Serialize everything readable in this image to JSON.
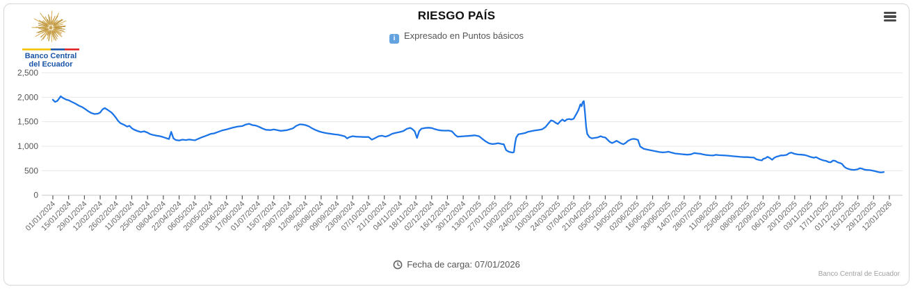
{
  "header": {
    "title": "RIESGO PAÍS",
    "subtitle": "Expresado en Puntos básicos",
    "info_icon_glyph": "i",
    "logo_line1": "Banco Central",
    "logo_line2": "del Ecuador"
  },
  "footer": {
    "load_date_text": "Fecha de carga: 07/01/2026"
  },
  "credits": {
    "text": "Banco Central de Ecuador"
  },
  "colors": {
    "line": "#1b74e8",
    "grid": "#e7e7e7",
    "axis": "#c9c9c9",
    "tick": "#555555",
    "x_label": "#666666",
    "y_label": "#555555",
    "title": "#111111",
    "subtitle": "#555555",
    "info_icon_bg": "#63a3e0",
    "menu_icon": "#4a4a4a",
    "logo_text": "#1a55a8",
    "logo_gold": "#c9a24b",
    "flag_yellow": "#f4c400",
    "flag_blue": "#1a55a8",
    "flag_red": "#e02222"
  },
  "chart_data": {
    "type": "line",
    "title": "RIESGO PAÍS",
    "subtitle": "Expresado en Puntos básicos",
    "ylabel": "Puntos básicos",
    "ylim": [
      0,
      2500
    ],
    "y_tick_labels": [
      "0",
      "500",
      "1,000",
      "1,500",
      "2,000",
      "2,500"
    ],
    "grid": "horizontal",
    "legend": "none",
    "x_unit": "days since 01/01/2024, biweekly ticks",
    "x_range_days": [
      0,
      742
    ],
    "x_tick_interval_days": 14,
    "x_tick_labels": [
      "01/01/2024",
      "15/01/2024",
      "29/01/2024",
      "12/02/2024",
      "26/02/2024",
      "11/03/2024",
      "25/03/2024",
      "08/04/2024",
      "22/04/2024",
      "06/05/2024",
      "20/05/2024",
      "03/06/2024",
      "17/06/2024",
      "01/07/2024",
      "15/07/2024",
      "29/07/2024",
      "12/08/2024",
      "26/08/2024",
      "09/09/2024",
      "23/09/2024",
      "07/10/2024",
      "21/10/2024",
      "04/11/2024",
      "18/11/2024",
      "02/12/2024",
      "16/12/2024",
      "30/12/2024",
      "13/01/2025",
      "27/01/2025",
      "10/02/2025",
      "24/02/2025",
      "10/03/2025",
      "24/03/2025",
      "07/04/2025",
      "21/04/2025",
      "05/05/2025",
      "19/05/2025",
      "02/06/2025",
      "16/06/2025",
      "30/06/2025",
      "14/07/2025",
      "28/07/2025",
      "11/08/2025",
      "25/08/2025",
      "08/09/2025",
      "22/09/2025",
      "06/10/2025",
      "20/10/2025",
      "03/11/2025",
      "17/11/2025",
      "01/12/2025",
      "15/12/2025",
      "29/12/2025",
      "12/01/2026"
    ],
    "series": [
      {
        "name": "Riesgo País",
        "points": [
          [
            0,
            1950
          ],
          [
            2,
            1905
          ],
          [
            4,
            1925
          ],
          [
            7,
            2020
          ],
          [
            9,
            1985
          ],
          [
            12,
            1950
          ],
          [
            14,
            1940
          ],
          [
            17,
            1905
          ],
          [
            20,
            1870
          ],
          [
            23,
            1830
          ],
          [
            26,
            1800
          ],
          [
            28,
            1770
          ],
          [
            31,
            1720
          ],
          [
            34,
            1680
          ],
          [
            37,
            1658
          ],
          [
            40,
            1665
          ],
          [
            42,
            1690
          ],
          [
            44,
            1750
          ],
          [
            46,
            1780
          ],
          [
            49,
            1738
          ],
          [
            52,
            1690
          ],
          [
            54,
            1640
          ],
          [
            56,
            1580
          ],
          [
            58,
            1515
          ],
          [
            60,
            1470
          ],
          [
            63,
            1440
          ],
          [
            66,
            1400
          ],
          [
            68,
            1418
          ],
          [
            70,
            1368
          ],
          [
            72,
            1340
          ],
          [
            75,
            1312
          ],
          [
            78,
            1290
          ],
          [
            81,
            1305
          ],
          [
            84,
            1278
          ],
          [
            86,
            1250
          ],
          [
            89,
            1230
          ],
          [
            92,
            1215
          ],
          [
            95,
            1205
          ],
          [
            98,
            1185
          ],
          [
            101,
            1162
          ],
          [
            103,
            1148
          ],
          [
            105,
            1295
          ],
          [
            107,
            1160
          ],
          [
            109,
            1128
          ],
          [
            112,
            1118
          ],
          [
            115,
            1135
          ],
          [
            118,
            1126
          ],
          [
            121,
            1138
          ],
          [
            124,
            1128
          ],
          [
            126,
            1122
          ],
          [
            129,
            1152
          ],
          [
            132,
            1182
          ],
          [
            136,
            1215
          ],
          [
            140,
            1252
          ],
          [
            143,
            1262
          ],
          [
            146,
            1288
          ],
          [
            150,
            1322
          ],
          [
            154,
            1342
          ],
          [
            157,
            1362
          ],
          [
            160,
            1382
          ],
          [
            164,
            1402
          ],
          [
            168,
            1412
          ],
          [
            171,
            1442
          ],
          [
            174,
            1458
          ],
          [
            177,
            1432
          ],
          [
            180,
            1422
          ],
          [
            183,
            1395
          ],
          [
            186,
            1362
          ],
          [
            189,
            1335
          ],
          [
            193,
            1330
          ],
          [
            196,
            1342
          ],
          [
            199,
            1330
          ],
          [
            202,
            1315
          ],
          [
            205,
            1322
          ],
          [
            208,
            1330
          ],
          [
            210,
            1345
          ],
          [
            213,
            1365
          ],
          [
            216,
            1418
          ],
          [
            219,
            1448
          ],
          [
            222,
            1442
          ],
          [
            224,
            1432
          ],
          [
            227,
            1408
          ],
          [
            230,
            1365
          ],
          [
            233,
            1332
          ],
          [
            236,
            1305
          ],
          [
            238,
            1290
          ],
          [
            241,
            1275
          ],
          [
            244,
            1262
          ],
          [
            247,
            1252
          ],
          [
            250,
            1242
          ],
          [
            253,
            1235
          ],
          [
            256,
            1220
          ],
          [
            259,
            1202
          ],
          [
            261,
            1160
          ],
          [
            263,
            1185
          ],
          [
            266,
            1205
          ],
          [
            269,
            1196
          ],
          [
            272,
            1192
          ],
          [
            276,
            1188
          ],
          [
            280,
            1190
          ],
          [
            283,
            1135
          ],
          [
            286,
            1168
          ],
          [
            289,
            1205
          ],
          [
            292,
            1215
          ],
          [
            295,
            1195
          ],
          [
            298,
            1218
          ],
          [
            301,
            1255
          ],
          [
            304,
            1272
          ],
          [
            308,
            1292
          ],
          [
            311,
            1312
          ],
          [
            314,
            1355
          ],
          [
            317,
            1375
          ],
          [
            319,
            1348
          ],
          [
            321,
            1305
          ],
          [
            323,
            1170
          ],
          [
            325,
            1310
          ],
          [
            327,
            1360
          ],
          [
            330,
            1372
          ],
          [
            333,
            1378
          ],
          [
            336,
            1372
          ],
          [
            339,
            1348
          ],
          [
            342,
            1330
          ],
          [
            345,
            1322
          ],
          [
            348,
            1318
          ],
          [
            351,
            1320
          ],
          [
            354,
            1305
          ],
          [
            357,
            1228
          ],
          [
            359,
            1195
          ],
          [
            362,
            1200
          ],
          [
            365,
            1206
          ],
          [
            368,
            1210
          ],
          [
            371,
            1216
          ],
          [
            374,
            1222
          ],
          [
            376,
            1214
          ],
          [
            378,
            1205
          ],
          [
            381,
            1150
          ],
          [
            384,
            1098
          ],
          [
            387,
            1058
          ],
          [
            390,
            1044
          ],
          [
            393,
            1052
          ],
          [
            395,
            1062
          ],
          [
            398,
            1046
          ],
          [
            400,
            1040
          ],
          [
            402,
            922
          ],
          [
            404,
            893
          ],
          [
            406,
            878
          ],
          [
            408,
            872
          ],
          [
            409,
            882
          ],
          [
            410,
            1060
          ],
          [
            411,
            1180
          ],
          [
            413,
            1245
          ],
          [
            416,
            1256
          ],
          [
            419,
            1270
          ],
          [
            421,
            1292
          ],
          [
            424,
            1306
          ],
          [
            427,
            1320
          ],
          [
            430,
            1330
          ],
          [
            434,
            1346
          ],
          [
            437,
            1392
          ],
          [
            440,
            1478
          ],
          [
            442,
            1528
          ],
          [
            444,
            1512
          ],
          [
            446,
            1478
          ],
          [
            448,
            1455
          ],
          [
            450,
            1508
          ],
          [
            452,
            1545
          ],
          [
            454,
            1512
          ],
          [
            456,
            1548
          ],
          [
            458,
            1556
          ],
          [
            460,
            1545
          ],
          [
            462,
            1562
          ],
          [
            464,
            1645
          ],
          [
            466,
            1728
          ],
          [
            467,
            1788
          ],
          [
            468,
            1858
          ],
          [
            469,
            1818
          ],
          [
            470,
            1898
          ],
          [
            471,
            1922
          ],
          [
            472,
            1680
          ],
          [
            473,
            1400
          ],
          [
            474,
            1250
          ],
          [
            476,
            1185
          ],
          [
            478,
            1162
          ],
          [
            480,
            1168
          ],
          [
            483,
            1178
          ],
          [
            486,
            1205
          ],
          [
            488,
            1186
          ],
          [
            490,
            1178
          ],
          [
            492,
            1135
          ],
          [
            494,
            1090
          ],
          [
            496,
            1065
          ],
          [
            498,
            1085
          ],
          [
            500,
            1112
          ],
          [
            502,
            1085
          ],
          [
            504,
            1058
          ],
          [
            506,
            1042
          ],
          [
            508,
            1066
          ],
          [
            510,
            1108
          ],
          [
            513,
            1142
          ],
          [
            515,
            1150
          ],
          [
            517,
            1145
          ],
          [
            519,
            1128
          ],
          [
            521,
            995
          ],
          [
            524,
            950
          ],
          [
            527,
            932
          ],
          [
            530,
            918
          ],
          [
            532,
            910
          ],
          [
            535,
            895
          ],
          [
            538,
            882
          ],
          [
            541,
            874
          ],
          [
            544,
            880
          ],
          [
            546,
            888
          ],
          [
            549,
            868
          ],
          [
            552,
            852
          ],
          [
            555,
            845
          ],
          [
            558,
            838
          ],
          [
            560,
            834
          ],
          [
            563,
            827
          ],
          [
            566,
            835
          ],
          [
            569,
            862
          ],
          [
            572,
            852
          ],
          [
            574,
            848
          ],
          [
            577,
            832
          ],
          [
            580,
            820
          ],
          [
            583,
            815
          ],
          [
            586,
            812
          ],
          [
            588,
            825
          ],
          [
            591,
            818
          ],
          [
            594,
            815
          ],
          [
            597,
            810
          ],
          [
            601,
            802
          ],
          [
            604,
            795
          ],
          [
            607,
            789
          ],
          [
            610,
            782
          ],
          [
            613,
            778
          ],
          [
            616,
            778
          ],
          [
            619,
            772
          ],
          [
            622,
            768
          ],
          [
            624,
            735
          ],
          [
            627,
            718
          ],
          [
            629,
            712
          ],
          [
            630,
            740
          ],
          [
            632,
            755
          ],
          [
            634,
            785
          ],
          [
            636,
            760
          ],
          [
            638,
            725
          ],
          [
            640,
            765
          ],
          [
            642,
            788
          ],
          [
            644,
            800
          ],
          [
            646,
            815
          ],
          [
            648,
            812
          ],
          [
            651,
            825
          ],
          [
            653,
            858
          ],
          [
            655,
            870
          ],
          [
            658,
            845
          ],
          [
            661,
            832
          ],
          [
            664,
            828
          ],
          [
            667,
            820
          ],
          [
            670,
            800
          ],
          [
            672,
            782
          ],
          [
            675,
            765
          ],
          [
            677,
            778
          ],
          [
            680,
            740
          ],
          [
            683,
            715
          ],
          [
            686,
            700
          ],
          [
            688,
            678
          ],
          [
            690,
            672
          ],
          [
            692,
            708
          ],
          [
            694,
            702
          ],
          [
            696,
            672
          ],
          [
            698,
            660
          ],
          [
            700,
            640
          ],
          [
            702,
            582
          ],
          [
            704,
            550
          ],
          [
            706,
            535
          ],
          [
            708,
            522
          ],
          [
            711,
            518
          ],
          [
            714,
            530
          ],
          [
            716,
            552
          ],
          [
            718,
            540
          ],
          [
            720,
            522
          ],
          [
            722,
            516
          ],
          [
            725,
            512
          ],
          [
            728,
            498
          ],
          [
            730,
            486
          ],
          [
            732,
            476
          ],
          [
            734,
            466
          ],
          [
            736,
            470
          ],
          [
            737,
            474
          ]
        ]
      }
    ]
  }
}
